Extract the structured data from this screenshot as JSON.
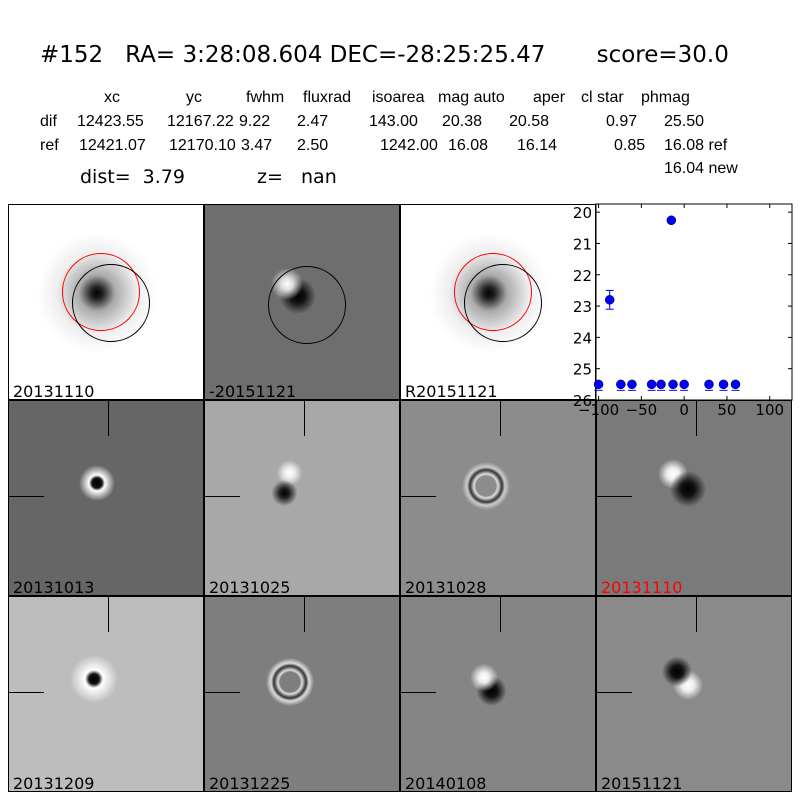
{
  "header": {
    "title": "#152   RA= 3:28:08.604 DEC=-28:25:25.47       score=30.0",
    "columns": [
      "xc",
      "yc",
      "fwhm",
      "fluxrad",
      "isoarea",
      "mag auto",
      "aper",
      "cl star",
      "phmag"
    ],
    "dif": {
      "label": "dif",
      "values": [
        "12423.55",
        "12167.22",
        "9.22",
        "2.47",
        "143.00",
        "20.38",
        "20.58",
        "0.97",
        "25.50"
      ]
    },
    "ref": {
      "label": "ref",
      "values": [
        "12421.07",
        "12170.10",
        "3.47",
        "2.50",
        "1242.00",
        "16.08",
        "16.14",
        "0.85",
        "16.08 ref"
      ]
    },
    "new_mag": "16.04 new",
    "dist": "dist=  3.79",
    "z": "z=   nan"
  },
  "stamps": [
    {
      "label": "20131110",
      "bg": "#ffffff",
      "label_color": "#000000"
    },
    {
      "label": "-20151121",
      "bg": "#6e6e6e",
      "label_color": "#000000"
    },
    {
      "label": "R20151121",
      "bg": "#ffffff",
      "label_color": "#000000"
    },
    {
      "label": "20131013",
      "bg": "#666666",
      "label_color": "#000000"
    },
    {
      "label": "20131025",
      "bg": "#a8a8a8",
      "label_color": "#000000"
    },
    {
      "label": "20131028",
      "bg": "#8c8c8c",
      "label_color": "#000000"
    },
    {
      "label": "20131110",
      "bg": "#7a7a7a",
      "label_color": "#ff0000"
    },
    {
      "label": "20131209",
      "bg": "#bdbdbd",
      "label_color": "#000000"
    },
    {
      "label": "20131225",
      "bg": "#7e7e7e",
      "label_color": "#000000"
    },
    {
      "label": "20140108",
      "bg": "#858585",
      "label_color": "#000000"
    },
    {
      "label": "20151121",
      "bg": "#8a8a8a",
      "label_color": "#000000"
    }
  ],
  "chart_data": {
    "type": "scatter",
    "xlim": [
      -103,
      126
    ],
    "ylim": [
      26,
      19.74
    ],
    "y_inverted": true,
    "xticks": [
      -100,
      -50,
      0,
      50,
      100
    ],
    "yticks": [
      20,
      21,
      22,
      23,
      24,
      25,
      26
    ],
    "marker_color": "#0000ff",
    "points": [
      {
        "x": -100,
        "y": 25.5
      },
      {
        "x": -87,
        "y": 22.8,
        "err": 0.3
      },
      {
        "x": -74,
        "y": 25.5
      },
      {
        "x": -61,
        "y": 25.5
      },
      {
        "x": -38,
        "y": 25.5
      },
      {
        "x": -27,
        "y": 25.5
      },
      {
        "x": -15,
        "y": 20.26
      },
      {
        "x": -13,
        "y": 25.5
      },
      {
        "x": 0,
        "y": 25.5
      },
      {
        "x": 29,
        "y": 25.5
      },
      {
        "x": 46,
        "y": 25.5
      },
      {
        "x": 60,
        "y": 25.5
      }
    ]
  }
}
